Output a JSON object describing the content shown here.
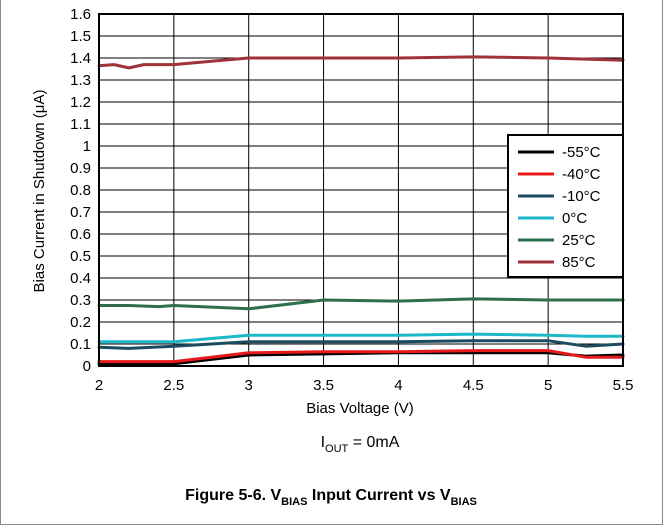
{
  "chart_data": {
    "type": "line",
    "xlabel": "Bias Voltage (V)",
    "ylabel": "Bias Current in Shutdown (μA)",
    "xlim": [
      2,
      5.5
    ],
    "ylim": [
      0,
      1.6
    ],
    "xticks": [
      "2",
      "2.5",
      "3",
      "3.5",
      "4",
      "4.5",
      "5",
      "5.5"
    ],
    "yticks": [
      "0",
      "0.1",
      "0.2",
      "0.3",
      "0.4",
      "0.5",
      "0.6",
      "0.7",
      "0.8",
      "0.9",
      "1",
      "1.1",
      "1.2",
      "1.3",
      "1.4",
      "1.5",
      "1.6"
    ],
    "grid": true,
    "legend_position": "right",
    "series": [
      {
        "name": "-55°C",
        "color": "#000000",
        "x": [
          2.0,
          2.2,
          2.5,
          2.75,
          3.0,
          3.5,
          4.0,
          4.5,
          5.0,
          5.25,
          5.5
        ],
        "y": [
          0.01,
          0.01,
          0.01,
          0.03,
          0.05,
          0.055,
          0.06,
          0.06,
          0.06,
          0.045,
          0.05
        ]
      },
      {
        "name": "-40°C",
        "color": "#e8191c",
        "x": [
          2.0,
          2.2,
          2.5,
          2.75,
          3.0,
          3.5,
          4.0,
          4.5,
          5.0,
          5.25,
          5.5
        ],
        "y": [
          0.02,
          0.02,
          0.02,
          0.04,
          0.06,
          0.065,
          0.065,
          0.07,
          0.07,
          0.04,
          0.04
        ]
      },
      {
        "name": "-10°C",
        "color": "#1c4b5f",
        "x": [
          2.0,
          2.2,
          2.5,
          2.75,
          3.0,
          3.5,
          4.0,
          4.5,
          5.0,
          5.25,
          5.5
        ],
        "y": [
          0.085,
          0.08,
          0.09,
          0.1,
          0.11,
          0.11,
          0.11,
          0.115,
          0.115,
          0.09,
          0.1
        ]
      },
      {
        "name": "0°C",
        "color": "#1bb8c8",
        "x": [
          2.0,
          2.2,
          2.5,
          2.75,
          3.0,
          3.5,
          4.0,
          4.5,
          5.0,
          5.25,
          5.5
        ],
        "y": [
          0.11,
          0.11,
          0.11,
          0.125,
          0.14,
          0.14,
          0.14,
          0.145,
          0.14,
          0.135,
          0.135
        ]
      },
      {
        "name": "25°C",
        "color": "#2e6e4c",
        "x": [
          2.0,
          2.2,
          2.4,
          2.5,
          3.0,
          3.5,
          4.0,
          4.5,
          5.0,
          5.5
        ],
        "y": [
          0.275,
          0.275,
          0.27,
          0.275,
          0.26,
          0.3,
          0.295,
          0.305,
          0.3,
          0.3
        ]
      },
      {
        "name": "85°C",
        "color": "#a0323a",
        "x": [
          2.0,
          2.1,
          2.2,
          2.3,
          2.5,
          2.75,
          3.0,
          3.5,
          4.0,
          4.5,
          5.0,
          5.25,
          5.5
        ],
        "y": [
          1.365,
          1.37,
          1.355,
          1.37,
          1.37,
          1.385,
          1.4,
          1.4,
          1.4,
          1.405,
          1.4,
          1.395,
          1.39
        ]
      }
    ]
  },
  "note": {
    "main": "I",
    "sub": "OUT",
    "rest": " = 0mA"
  },
  "caption": {
    "prefix": "Figure 5-6. V",
    "sub1": "BIAS",
    "middle": " Input Current vs V",
    "sub2": "BIAS"
  }
}
